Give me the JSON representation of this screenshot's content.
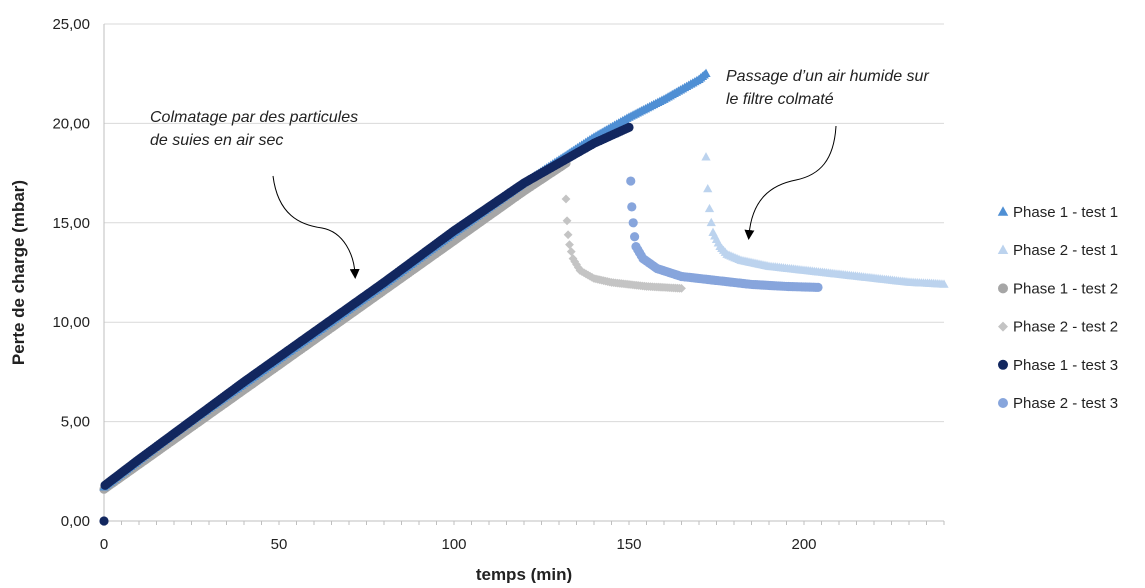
{
  "chart_data": {
    "type": "scatter",
    "title": "",
    "xlabel": "temps (min)",
    "ylabel": "Perte de charge (mbar)",
    "xlim": [
      0,
      240
    ],
    "ylim": [
      0,
      25
    ],
    "x_ticks": [
      0,
      50,
      100,
      150,
      200
    ],
    "x_tick_labels": [
      "0",
      "50",
      "100",
      "150",
      "200"
    ],
    "y_ticks": [
      0,
      5,
      10,
      15,
      20,
      25
    ],
    "y_tick_labels": [
      "0,00",
      "5,00",
      "10,00",
      "15,00",
      "20,00",
      "25,00"
    ],
    "grid": "horizontal",
    "legend_position": "right",
    "annotations": [
      {
        "lines": [
          "Colmatage par des particules",
          "de suies en air sec"
        ]
      },
      {
        "lines": [
          "Passage d’un air humide sur",
          "le filtre colmaté"
        ]
      }
    ],
    "series": [
      {
        "name": "Phase 1 - test 1",
        "marker": "triangle",
        "color": "#4f8fd4",
        "points": [
          [
            0,
            1.7
          ],
          [
            20,
            4.4
          ],
          [
            40,
            6.9
          ],
          [
            60,
            9.4
          ],
          [
            80,
            11.9
          ],
          [
            100,
            14.5
          ],
          [
            120,
            17.0
          ],
          [
            140,
            19.3
          ],
          [
            150,
            20.3
          ],
          [
            160,
            21.2
          ],
          [
            170,
            22.2
          ],
          [
            172,
            22.5
          ]
        ]
      },
      {
        "name": "Phase 2 - test 1",
        "marker": "triangle",
        "color": "#bcd3ee",
        "points": [
          [
            172,
            18.3
          ],
          [
            172.5,
            16.7
          ],
          [
            173,
            15.7
          ],
          [
            173.5,
            15.0
          ],
          [
            174,
            14.5
          ],
          [
            176,
            13.8
          ],
          [
            178,
            13.4
          ],
          [
            182,
            13.1
          ],
          [
            190,
            12.8
          ],
          [
            200,
            12.6
          ],
          [
            210,
            12.4
          ],
          [
            220,
            12.2
          ],
          [
            230,
            12.0
          ],
          [
            240,
            11.9
          ]
        ]
      },
      {
        "name": "Phase 1 - test 2",
        "marker": "circle",
        "color": "#a6a6a6",
        "points": [
          [
            0,
            1.6
          ],
          [
            20,
            4.1
          ],
          [
            40,
            6.6
          ],
          [
            60,
            9.1
          ],
          [
            80,
            11.6
          ],
          [
            100,
            14.1
          ],
          [
            120,
            16.6
          ],
          [
            132,
            18.0
          ]
        ]
      },
      {
        "name": "Phase 2 - test 2",
        "marker": "diamond",
        "color": "#c4c4c4",
        "points": [
          [
            132,
            16.2
          ],
          [
            132.3,
            15.1
          ],
          [
            132.6,
            14.4
          ],
          [
            133,
            13.9
          ],
          [
            134,
            13.2
          ],
          [
            136,
            12.6
          ],
          [
            140,
            12.2
          ],
          [
            145,
            12.0
          ],
          [
            150,
            11.9
          ],
          [
            155,
            11.8
          ],
          [
            160,
            11.75
          ],
          [
            165,
            11.7
          ]
        ]
      },
      {
        "name": "Phase 1 - test 3",
        "marker": "circle",
        "color": "#12275f",
        "points": [
          [
            0,
            0.0
          ],
          [
            0.3,
            1.8
          ],
          [
            10,
            3.1
          ],
          [
            20,
            4.4
          ],
          [
            40,
            7.0
          ],
          [
            60,
            9.5
          ],
          [
            80,
            12.0
          ],
          [
            100,
            14.6
          ],
          [
            120,
            17.0
          ],
          [
            140,
            19.0
          ],
          [
            150,
            19.8
          ]
        ]
      },
      {
        "name": "Phase 2 - test 3",
        "marker": "circle",
        "color": "#87a5dc",
        "points": [
          [
            150.5,
            17.1
          ],
          [
            150.8,
            15.8
          ],
          [
            151.2,
            15.0
          ],
          [
            151.6,
            14.3
          ],
          [
            152,
            13.8
          ],
          [
            154,
            13.2
          ],
          [
            158,
            12.7
          ],
          [
            165,
            12.3
          ],
          [
            175,
            12.1
          ],
          [
            185,
            11.9
          ],
          [
            195,
            11.8
          ],
          [
            204,
            11.75
          ]
        ]
      }
    ]
  }
}
